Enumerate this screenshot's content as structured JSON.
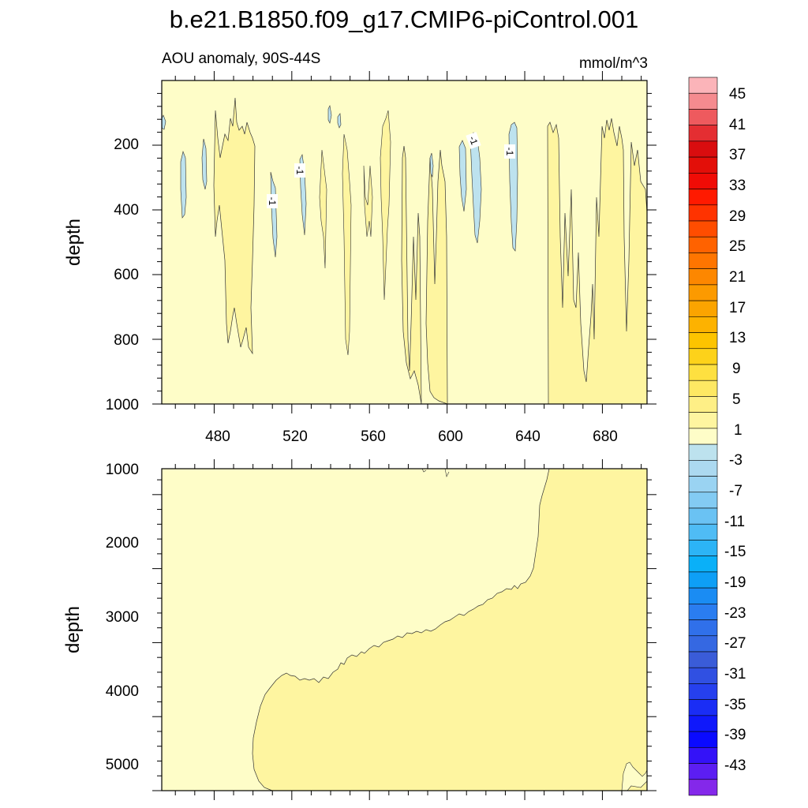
{
  "chart_data": [
    {
      "type": "contour",
      "title": "b.e21.B1850.f09_g17.CMIP6-piControl.001",
      "left_string": "AOU anomaly, 90S-44S",
      "right_string": "mmol/m^3",
      "xlabel": "",
      "ylabel": "depth",
      "x_range": [
        453,
        703
      ],
      "x_ticks": [
        "480",
        "520",
        "560",
        "600",
        "640",
        "680"
      ],
      "y_range": [
        1000,
        0
      ],
      "y_ticks": [
        "200",
        "400",
        "600",
        "800",
        "1000"
      ],
      "contour_labels": [
        "-1",
        "-1",
        "-1",
        "-1"
      ],
      "regions": [
        {
          "name": "background",
          "level": "-1 to 1",
          "color": "#fefdc8"
        },
        {
          "name": "band 1 to 3",
          "level": "1 to 3",
          "color": "#fef5a0"
        },
        {
          "name": "band -1 to -3",
          "level": "-1 to -3",
          "color": "#bde2ee"
        }
      ]
    },
    {
      "type": "contour",
      "title": "",
      "ylabel": "depth",
      "x_range": [
        453,
        703
      ],
      "y_range": [
        5350,
        1000
      ],
      "y_ticks": [
        "1000",
        "2000",
        "3000",
        "4000",
        "5000"
      ],
      "regions": [
        {
          "name": "background",
          "level": "-1 to 1",
          "color": "#fefdc8"
        },
        {
          "name": "deep band 1 to 3",
          "level": "1 to 3",
          "color": "#fef5a0"
        }
      ]
    }
  ],
  "colorbar": {
    "labels": [
      "45",
      "41",
      "37",
      "33",
      "29",
      "25",
      "21",
      "17",
      "13",
      "9",
      "5",
      "1",
      "-3",
      "-7",
      "-11",
      "-15",
      "-19",
      "-23",
      "-27",
      "-31",
      "-35",
      "-39",
      "-43"
    ],
    "colors": [
      "#fbb4b9",
      "#f58b8f",
      "#ee5a5e",
      "#e42e32",
      "#d90d0f",
      "#e30f09",
      "#f00c06",
      "#ff1a00",
      "#ff3300",
      "#ff4d00",
      "#ff6200",
      "#ff7500",
      "#fd8700",
      "#fc9a00",
      "#fba400",
      "#fdb200",
      "#fdc400",
      "#fdd21a",
      "#fee040",
      "#fee863",
      "#feef86",
      "#fef5a0",
      "#fefdc8",
      "#bde2ee",
      "#acd9f0",
      "#9ad3f2",
      "#83cbf3",
      "#6ac2f3",
      "#4fbcf5",
      "#2cb4f6",
      "#0ab0f8",
      "#0e9ff6",
      "#1a8cf3",
      "#2a7df0",
      "#3070ea",
      "#3568e2",
      "#3a5cd8",
      "#3050e2",
      "#2640ee",
      "#1a2df5",
      "#0f18fb",
      "#0a0aff",
      "#3412f8",
      "#5c1ef2",
      "#8428ea"
    ]
  }
}
